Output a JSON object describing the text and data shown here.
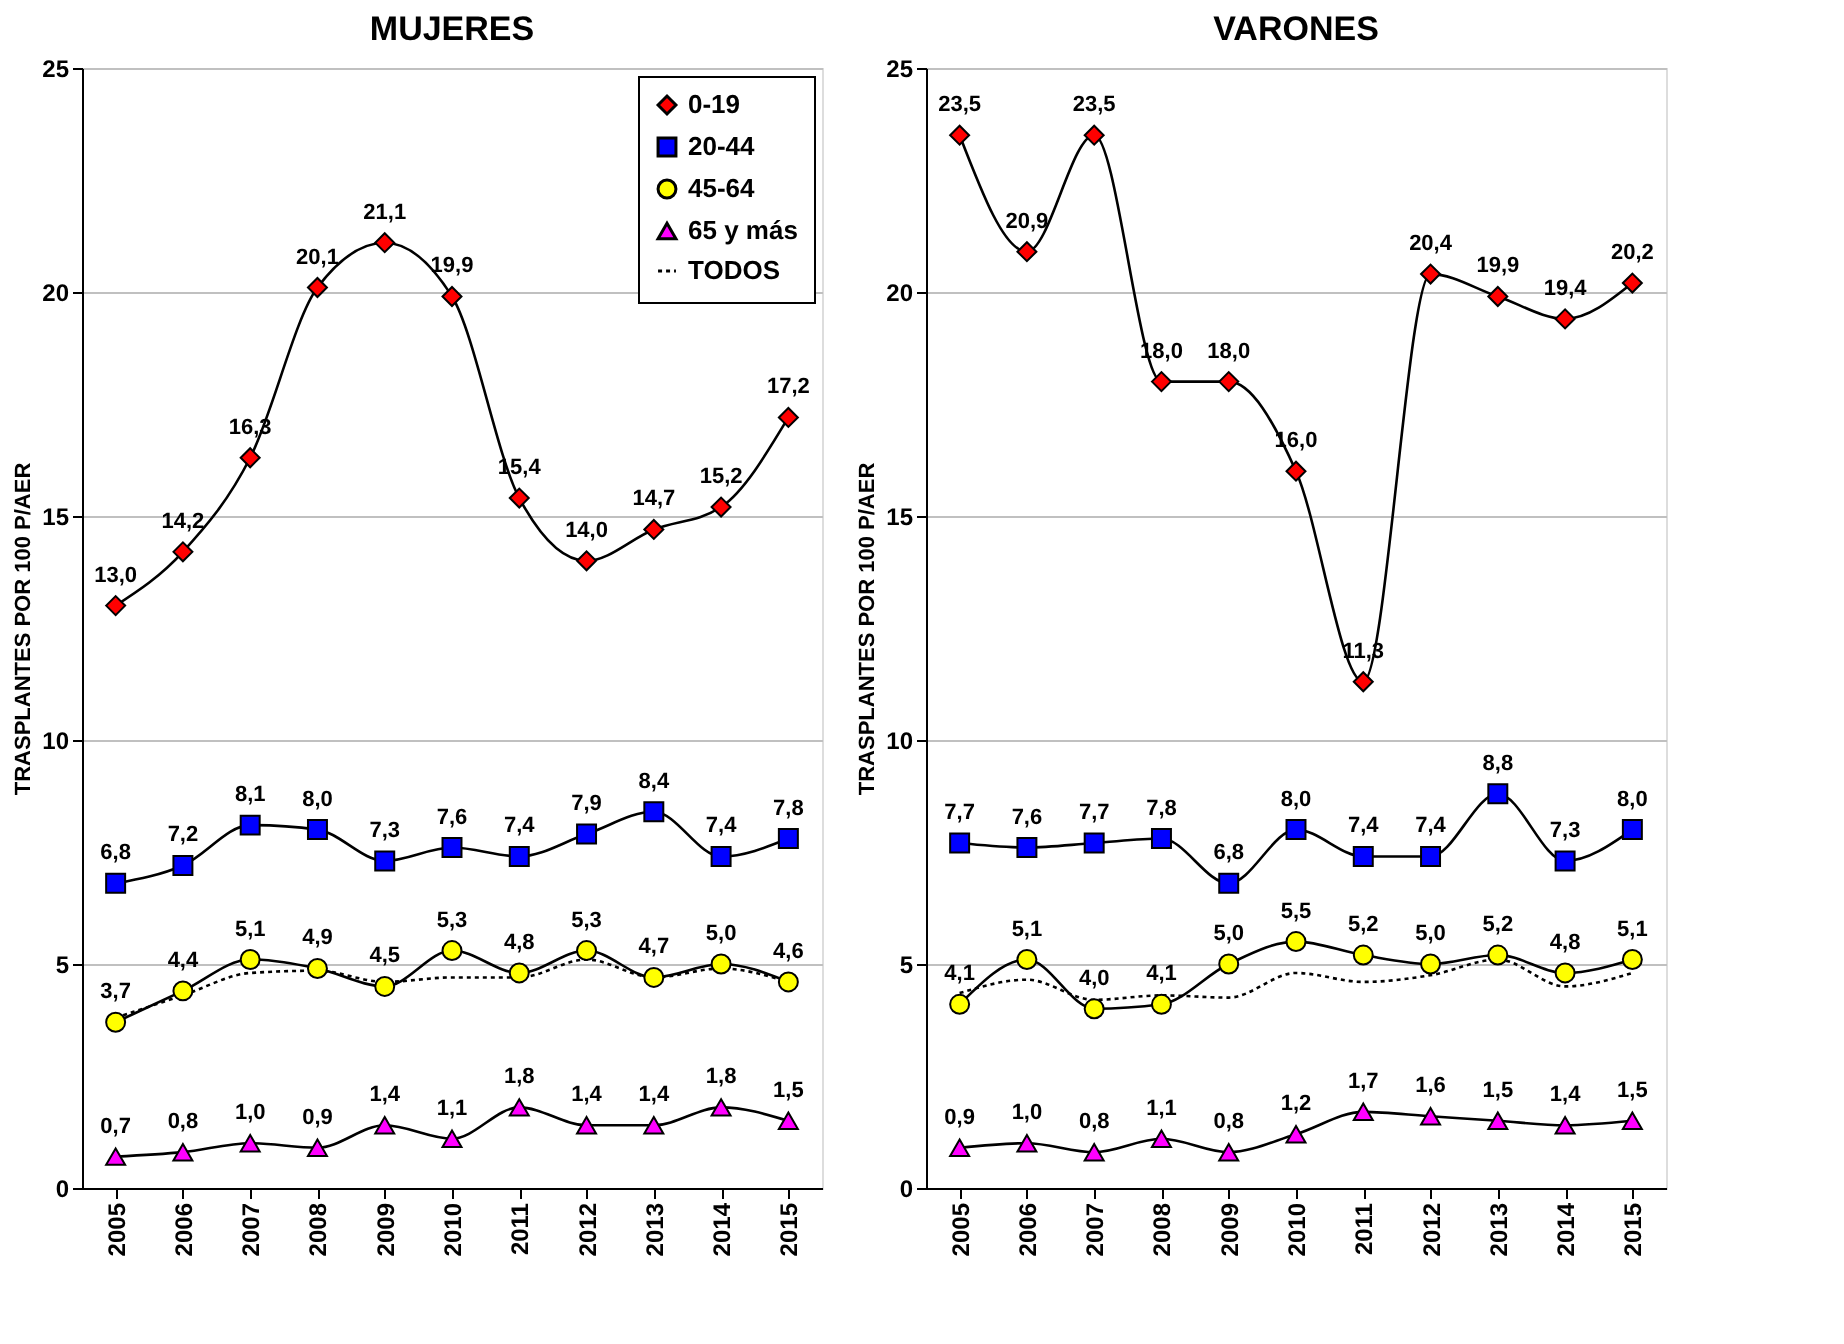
{
  "chart_data": [
    {
      "type": "line",
      "title": "MUJERES",
      "ylabel": "TRASPLANTES  POR 100 P/AER",
      "categories": [
        "2005",
        "2006",
        "2007",
        "2008",
        "2009",
        "2010",
        "2011",
        "2012",
        "2013",
        "2014",
        "2015"
      ],
      "ylim": [
        0,
        25
      ],
      "yticks": [
        0,
        5,
        10,
        15,
        20,
        25
      ],
      "grid": "y",
      "legend": "top right",
      "series": [
        {
          "name": "0-19",
          "color": "#ff0000",
          "marker": "diamond",
          "line_style": "solid",
          "values": [
            13.0,
            14.2,
            16.3,
            20.1,
            21.1,
            19.9,
            15.4,
            14.0,
            14.7,
            15.2,
            17.2
          ],
          "value_labels": [
            "13,0",
            "14,2",
            "16,3",
            "20,1",
            "21,1",
            "19,9",
            "15,4",
            "14,0",
            "14,7",
            "15,2",
            "17,2"
          ]
        },
        {
          "name": "20-44",
          "color": "#0000ff",
          "marker": "square",
          "line_style": "solid",
          "values": [
            6.8,
            7.2,
            8.1,
            8.0,
            7.3,
            7.6,
            7.4,
            7.9,
            8.4,
            7.4,
            7.8
          ],
          "value_labels": [
            "6,8",
            "7,2",
            "8,1",
            "8,0",
            "7,3",
            "7,6",
            "7,4",
            "7,9",
            "8,4",
            "7,4",
            "7,8"
          ]
        },
        {
          "name": "45-64",
          "color": "#ffff00",
          "marker": "circle",
          "line_style": "solid",
          "values": [
            3.7,
            4.4,
            5.1,
            4.9,
            4.5,
            5.3,
            4.8,
            5.3,
            4.7,
            5.0,
            4.6
          ],
          "value_labels": [
            "3,7",
            "4,4",
            "5,1",
            "4,9",
            "4,5",
            "5,3",
            "4,8",
            "5,3",
            "4,7",
            "5,0",
            "4,6"
          ]
        },
        {
          "name": "65 y más",
          "color": "#ff00ff",
          "marker": "triangle",
          "line_style": "solid",
          "values": [
            0.7,
            0.8,
            1.0,
            0.9,
            1.4,
            1.1,
            1.8,
            1.4,
            1.4,
            1.8,
            1.5
          ],
          "value_labels": [
            "0,7",
            "0,8",
            "1,0",
            "0,9",
            "1,4",
            "1,1",
            "1,8",
            "1,4",
            "1,4",
            "1,8",
            "1,5"
          ]
        },
        {
          "name": "TODOS",
          "color": "#000000",
          "marker": "none",
          "line_style": "dotted",
          "values": [
            3.8,
            4.3,
            4.8,
            4.85,
            4.6,
            4.7,
            4.7,
            5.1,
            4.7,
            4.9,
            4.6
          ]
        }
      ]
    },
    {
      "type": "line",
      "title": "VARONES",
      "ylabel": "TRASPLANTES  POR 100 P/AER",
      "categories": [
        "2005",
        "2006",
        "2007",
        "2008",
        "2009",
        "2010",
        "2011",
        "2012",
        "2013",
        "2014",
        "2015"
      ],
      "ylim": [
        0,
        25
      ],
      "yticks": [
        0,
        5,
        10,
        15,
        20,
        25
      ],
      "grid": "y",
      "series": [
        {
          "color": "#ff0000",
          "marker": "diamond",
          "line_style": "solid",
          "values": [
            23.5,
            20.9,
            23.5,
            18.0,
            18.0,
            16.0,
            11.3,
            20.4,
            19.9,
            19.4,
            20.2
          ],
          "value_labels": [
            "23,5",
            "20,9",
            "23,5",
            "18,0",
            "18,0",
            "16,0",
            "11,3",
            "20,4",
            "19,9",
            "19,4",
            "20,2"
          ]
        },
        {
          "color": "#0000ff",
          "marker": "square",
          "line_style": "solid",
          "values": [
            7.7,
            7.6,
            7.7,
            7.8,
            6.8,
            8.0,
            7.4,
            7.4,
            8.8,
            7.3,
            8.0
          ],
          "value_labels": [
            "7,7",
            "7,6",
            "7,7",
            "7,8",
            "6,8",
            "8,0",
            "7,4",
            "7,4",
            "8,8",
            "7,3",
            "8,0"
          ]
        },
        {
          "color": "#ffff00",
          "marker": "circle",
          "line_style": "solid",
          "values": [
            4.1,
            5.1,
            4.0,
            4.1,
            5.0,
            5.5,
            5.2,
            5.0,
            5.2,
            4.8,
            5.1
          ],
          "value_labels": [
            "4,1",
            "5,1",
            "4,0",
            "4,1",
            "5,0",
            "5,5",
            "5,2",
            "5,0",
            "5,2",
            "4,8",
            "5,1"
          ]
        },
        {
          "color": "#ff00ff",
          "marker": "triangle",
          "line_style": "solid",
          "values": [
            0.9,
            1.0,
            0.8,
            1.1,
            0.8,
            1.2,
            1.7,
            1.6,
            1.5,
            1.4,
            1.5
          ],
          "value_labels": [
            "0,9",
            "1,0",
            "0,8",
            "1,1",
            "0,8",
            "1,2",
            "1,7",
            "1,6",
            "1,5",
            "1,4",
            "1,5"
          ]
        },
        {
          "color": "#000000",
          "marker": "none",
          "line_style": "dotted",
          "values": [
            4.35,
            4.65,
            4.2,
            4.3,
            4.25,
            4.8,
            4.6,
            4.75,
            5.1,
            4.5,
            4.8
          ]
        }
      ]
    }
  ]
}
